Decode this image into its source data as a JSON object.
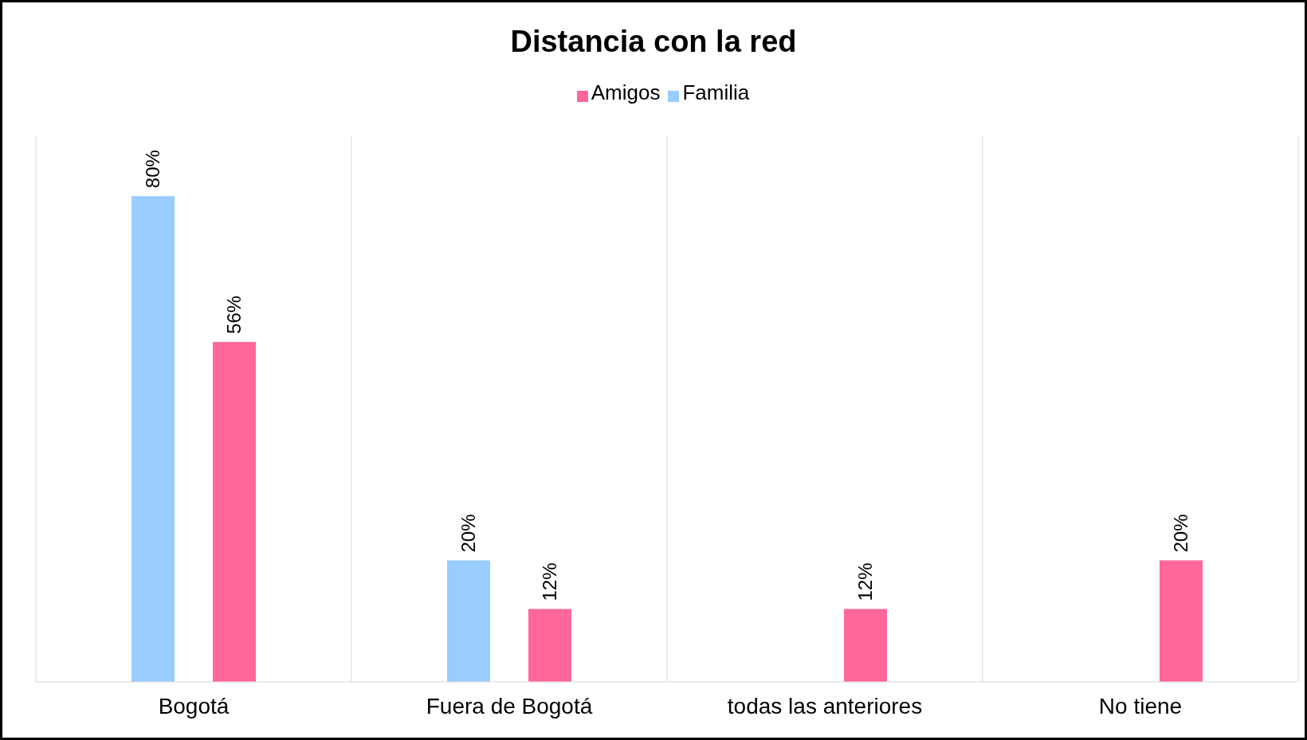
{
  "chart_data": {
    "type": "bar",
    "title": "Distancia con la red",
    "categories": [
      "Bogotá",
      "Fuera de Bogotá",
      "todas las anteriores",
      "No tiene"
    ],
    "series": [
      {
        "name": "Familia",
        "color": "#99ccff",
        "values": [
          80,
          20,
          null,
          null
        ],
        "value_labels": [
          "80%",
          "20%",
          null,
          null
        ]
      },
      {
        "name": "Amigos",
        "color": "#ff6699",
        "values": [
          56,
          12,
          12,
          20
        ],
        "value_labels": [
          "56%",
          "12%",
          "12%",
          "20%"
        ]
      }
    ],
    "grid": "x",
    "legend": "top",
    "tick_labels": "x"
  }
}
